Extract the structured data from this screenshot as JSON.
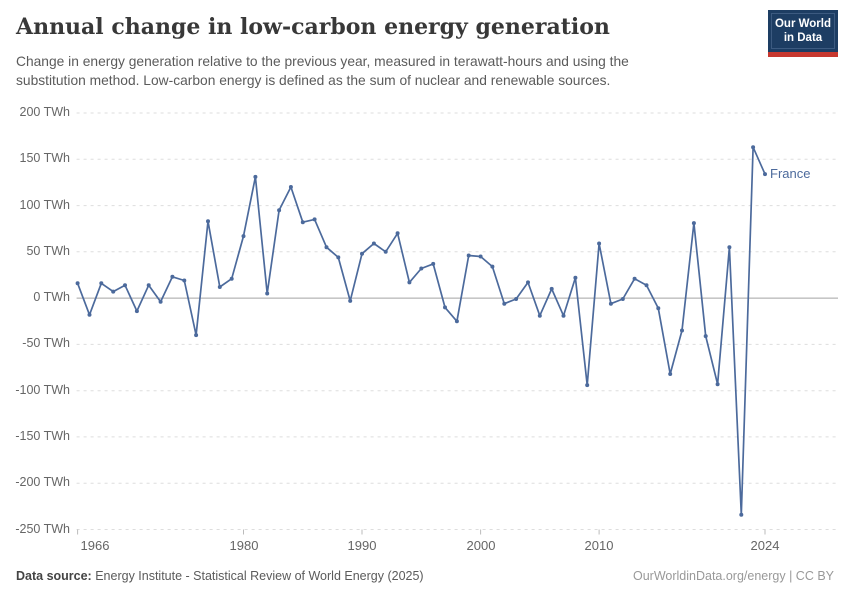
{
  "header": {
    "title": "Annual change in low-carbon energy generation",
    "subtitle": "Change in energy generation relative to the previous year, measured in terawatt-hours and using the substitution method. Low-carbon energy is defined as the sum of nuclear and renewable sources.",
    "logo": {
      "line1": "Our World",
      "line2": "in Data"
    }
  },
  "footer": {
    "source_label": "Data source:",
    "source_text": " Energy Institute - Statistical Review of World Energy (2025)",
    "credit": "OurWorldinData.org/energy | CC BY"
  },
  "colors": {
    "line": "#4C6A9C",
    "grid": "#dddddd",
    "zero_line": "#a3a3a3",
    "tick": "#bbbbbb",
    "axis_text": "#666666",
    "logo_navy": "#1d3d63",
    "logo_red": "#c7382f"
  },
  "chart_data": {
    "type": "line",
    "title": "Annual change in low-carbon energy generation",
    "unit": "TWh",
    "series_label": "France",
    "xlabel": "",
    "ylabel": "TWh",
    "ylim": [
      -250,
      200
    ],
    "xlim": [
      1966,
      2024
    ],
    "grid": "dashed-horizontal",
    "legend_position": "end-of-line",
    "x_ticks": [
      1966,
      1980,
      1990,
      2000,
      2010,
      2024
    ],
    "y_ticks": [
      200,
      150,
      100,
      50,
      0,
      -50,
      -100,
      -150,
      -200,
      -250
    ],
    "x": [
      1966,
      1967,
      1968,
      1969,
      1970,
      1971,
      1972,
      1973,
      1974,
      1975,
      1976,
      1977,
      1978,
      1979,
      1980,
      1981,
      1982,
      1983,
      1984,
      1985,
      1986,
      1987,
      1988,
      1989,
      1990,
      1991,
      1992,
      1993,
      1994,
      1995,
      1996,
      1997,
      1998,
      1999,
      2000,
      2001,
      2002,
      2003,
      2004,
      2005,
      2006,
      2007,
      2008,
      2009,
      2010,
      2011,
      2012,
      2013,
      2014,
      2015,
      2016,
      2017,
      2018,
      2019,
      2020,
      2021,
      2022,
      2023,
      2024
    ],
    "values": [
      16,
      -18,
      16,
      7,
      14,
      -14,
      14,
      -4,
      23,
      19,
      -40,
      83,
      12,
      21,
      67,
      131,
      5,
      95,
      120,
      82,
      85,
      55,
      44,
      -3,
      48,
      59,
      50,
      70,
      17,
      32,
      37,
      -10,
      -25,
      46,
      45,
      34,
      -6,
      -1,
      17,
      -19,
      10,
      -19,
      22,
      -94,
      59,
      -6,
      -1,
      21,
      14,
      -11,
      -82,
      -35,
      81,
      -41,
      -93,
      55,
      -234,
      163,
      134
    ]
  }
}
